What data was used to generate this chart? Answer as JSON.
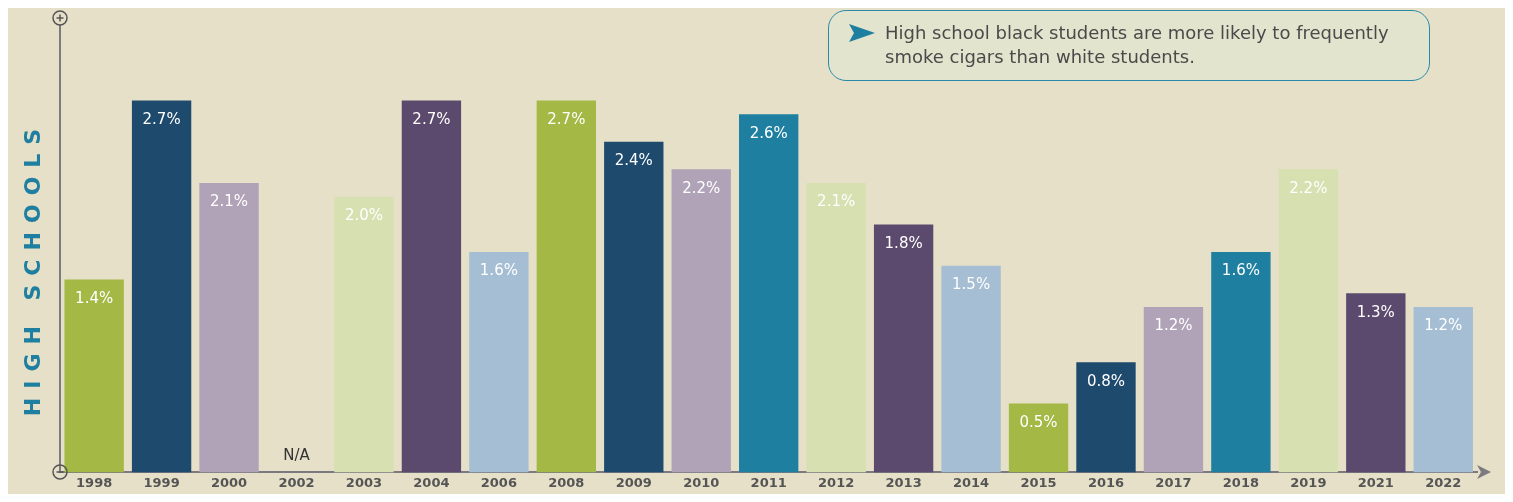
{
  "chart_data": {
    "type": "bar",
    "ylabel": "HIGH SCHOOLS",
    "categories": [
      "1998",
      "1999",
      "2000",
      "2002",
      "2003",
      "2004",
      "2006",
      "2008",
      "2009",
      "2010",
      "2011",
      "2012",
      "2013",
      "2014",
      "2015",
      "2016",
      "2017",
      "2018",
      "2019",
      "2021",
      "2022"
    ],
    "values": [
      1.4,
      2.7,
      2.1,
      null,
      2.0,
      2.7,
      1.6,
      2.7,
      2.4,
      2.2,
      2.6,
      2.1,
      1.8,
      1.5,
      0.5,
      0.8,
      1.2,
      1.6,
      2.2,
      1.3,
      1.2
    ],
    "value_labels": [
      "1.4%",
      "2.7%",
      "2.1%",
      "N/A",
      "2.0%",
      "2.7%",
      "1.6%",
      "2.7%",
      "2.4%",
      "2.2%",
      "2.6%",
      "2.1%",
      "1.8%",
      "1.5%",
      "0.5%",
      "0.8%",
      "1.2%",
      "1.6%",
      "2.2%",
      "1.3%",
      "1.2%"
    ],
    "colors": [
      "#a3b845",
      "#1e4a6e",
      "#b0a3b8",
      "#1e7fa0",
      "#d6e0b0",
      "#5c4a6e",
      "#a5bed4",
      "#a3b845",
      "#1e4a6e",
      "#b0a3b8",
      "#1e7fa0",
      "#d6e0b0",
      "#5c4a6e",
      "#a5bed4",
      "#a3b845",
      "#1e4a6e",
      "#b0a3b8",
      "#1e7fa0",
      "#d6e0b0",
      "#5c4a6e",
      "#a5bed4"
    ],
    "annotations": [
      "High school black students are more likely to frequently smoke cigars than white students."
    ],
    "tick_labels": "x",
    "grid": false,
    "legend": false
  }
}
